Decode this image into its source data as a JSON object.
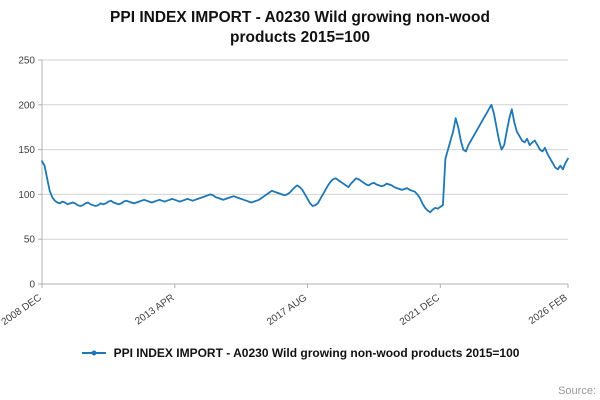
{
  "title": "PPI INDEX IMPORT - A0230 Wild growing non-wood products 2015=100",
  "legend": {
    "label": "PPI INDEX IMPORT - A0230 Wild growing non-wood products 2015=100"
  },
  "source_label": "Source:",
  "colors": {
    "line": "#1f77b4",
    "grid": "#d3d3d3",
    "axis": "#b0b0b0",
    "tick_text": "#404040"
  },
  "chart_data": {
    "type": "line",
    "title": "PPI INDEX IMPORT - A0230 Wild growing non-wood products 2015=100",
    "xlabel": "",
    "ylabel": "",
    "ylim": [
      0,
      250
    ],
    "yticks": [
      0,
      50,
      100,
      150,
      200,
      250
    ],
    "grid": true,
    "legend_position": "bottom",
    "x_start": "2008 DEC",
    "x_end": "2026 FEB",
    "x_frequency": "monthly",
    "xticks": [
      {
        "index": 0,
        "label": "2008 DEC"
      },
      {
        "index": 52,
        "label": "2013 APR"
      },
      {
        "index": 104,
        "label": "2017 AUG"
      },
      {
        "index": 156,
        "label": "2021 DEC"
      },
      {
        "index": 206,
        "label": "2026 FEB"
      }
    ],
    "series_name": "PPI INDEX IMPORT - A0230 Wild growing non-wood products 2015=100",
    "values": [
      137,
      132,
      118,
      104,
      97,
      93,
      91,
      90,
      92,
      91,
      89,
      90,
      91,
      90,
      88,
      87,
      88,
      90,
      91,
      89,
      88,
      87,
      88,
      90,
      89,
      90,
      92,
      93,
      91,
      90,
      89,
      90,
      92,
      93,
      92,
      91,
      90,
      91,
      92,
      93,
      94,
      93,
      92,
      91,
      92,
      93,
      94,
      93,
      92,
      93,
      94,
      95,
      94,
      93,
      92,
      93,
      94,
      95,
      94,
      93,
      94,
      95,
      96,
      97,
      98,
      99,
      100,
      99,
      97,
      96,
      95,
      94,
      95,
      96,
      97,
      98,
      97,
      96,
      95,
      94,
      93,
      92,
      91,
      92,
      93,
      94,
      96,
      98,
      100,
      102,
      104,
      103,
      102,
      101,
      100,
      99,
      100,
      102,
      105,
      108,
      110,
      108,
      105,
      100,
      95,
      90,
      87,
      88,
      90,
      95,
      100,
      105,
      110,
      114,
      117,
      118,
      116,
      114,
      112,
      110,
      108,
      112,
      115,
      118,
      117,
      115,
      113,
      111,
      110,
      112,
      113,
      111,
      110,
      109,
      110,
      112,
      111,
      110,
      108,
      107,
      106,
      105,
      106,
      107,
      105,
      104,
      103,
      100,
      96,
      90,
      85,
      82,
      80,
      83,
      85,
      84,
      86,
      88,
      140,
      150,
      160,
      170,
      185,
      175,
      160,
      150,
      148,
      155,
      160,
      165,
      170,
      175,
      180,
      185,
      190,
      195,
      200,
      190,
      175,
      160,
      150,
      155,
      170,
      185,
      195,
      180,
      170,
      165,
      160,
      158,
      162,
      155,
      158,
      160,
      155,
      150,
      148,
      152,
      145,
      140,
      135,
      130,
      128,
      132,
      128,
      135,
      140
    ]
  }
}
